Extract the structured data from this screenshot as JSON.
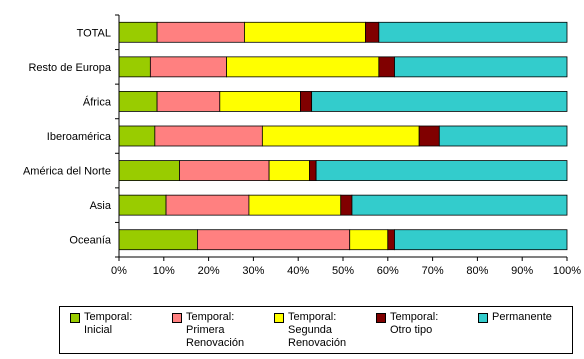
{
  "chart_data": {
    "type": "bar",
    "orientation": "horizontal",
    "stacked": "percent",
    "categories": [
      "TOTAL",
      "Resto de Europa",
      "África",
      "Iberoamérica",
      "América del Norte",
      "Asia",
      "Oceanía"
    ],
    "series": [
      {
        "name": "Temporal: Inicial",
        "color": "#99cc00",
        "values": [
          8.5,
          7,
          8.5,
          8,
          13.5,
          10.5,
          17.5
        ]
      },
      {
        "name": "Temporal: Primera Renovación",
        "color": "#ff8080",
        "values": [
          19.5,
          17,
          14,
          24,
          20,
          18.5,
          34
        ]
      },
      {
        "name": "Temporal: Segunda Renovación",
        "color": "#ffff00",
        "values": [
          27,
          34,
          18,
          35,
          9,
          20.5,
          8.5
        ]
      },
      {
        "name": "Temporal: Otro tipo",
        "color": "#800000",
        "values": [
          3,
          3.5,
          2.5,
          4.5,
          1.5,
          2.5,
          1.5
        ]
      },
      {
        "name": "Permanente",
        "color": "#33cccc",
        "values": [
          42,
          38.5,
          57,
          28.5,
          56,
          48,
          38.5
        ]
      }
    ],
    "xlim": [
      0,
      100
    ],
    "xticks": [
      "0%",
      "10%",
      "20%",
      "30%",
      "40%",
      "50%",
      "60%",
      "70%",
      "80%",
      "90%",
      "100%"
    ],
    "grid": false,
    "legend_position": "bottom"
  },
  "legend": [
    {
      "label": "Temporal:\nInicial",
      "color": "#99cc00"
    },
    {
      "label": "Temporal:\nPrimera\nRenovación",
      "color": "#ff8080"
    },
    {
      "label": "Temporal:\nSegunda\nRenovación",
      "color": "#ffff00"
    },
    {
      "label": "Temporal:\nOtro tipo",
      "color": "#800000"
    },
    {
      "label": "Permanente",
      "color": "#33cccc"
    }
  ]
}
